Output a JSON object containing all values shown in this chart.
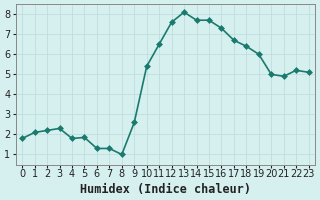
{
  "x": [
    0,
    1,
    2,
    3,
    4,
    5,
    6,
    7,
    8,
    9,
    10,
    11,
    12,
    13,
    14,
    15,
    16,
    17,
    18,
    19,
    20,
    21,
    22,
    23
  ],
  "y": [
    1.8,
    2.1,
    2.2,
    2.3,
    1.8,
    1.85,
    1.3,
    1.3,
    1.0,
    2.6,
    5.4,
    6.5,
    7.6,
    8.1,
    7.7,
    7.7,
    7.3,
    6.7,
    6.4,
    6.0,
    5.0,
    4.9,
    5.2,
    5.1
  ],
  "line_color": "#1a7a6e",
  "marker": "D",
  "marker_size": 3,
  "bg_color": "#d6f0ef",
  "xlabel": "Humidex (Indice chaleur)",
  "xlim": [
    -0.5,
    23.5
  ],
  "ylim": [
    0.5,
    8.5
  ],
  "yticks": [
    1,
    2,
    3,
    4,
    5,
    6,
    7,
    8
  ],
  "xtick_labels": [
    "0",
    "1",
    "2",
    "3",
    "4",
    "5",
    "6",
    "7",
    "8",
    "9",
    "10",
    "11",
    "12",
    "13",
    "14",
    "15",
    "16",
    "17",
    "18",
    "19",
    "20",
    "21",
    "22",
    "23"
  ],
  "font_color": "#222222",
  "xlabel_fontsize": 8.5,
  "tick_fontsize": 7.0
}
